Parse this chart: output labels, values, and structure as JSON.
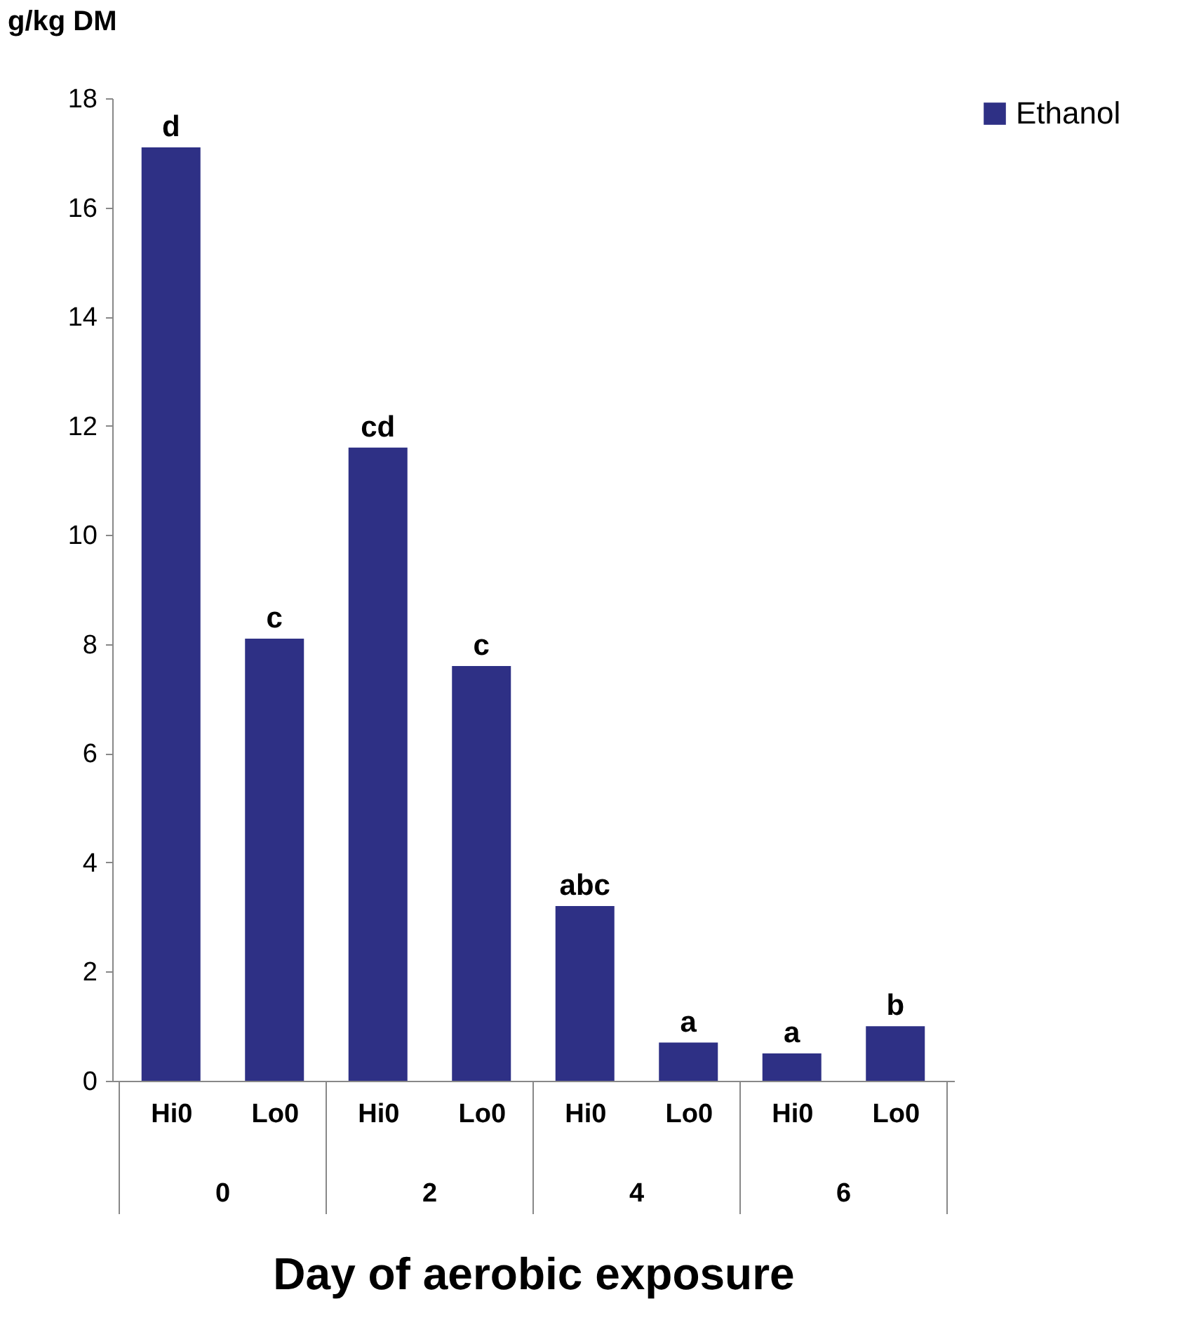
{
  "chart_data": {
    "type": "bar",
    "xlabel": "Day of aerobic exposure",
    "ylabel": "g/kg DM",
    "categories": [
      "Hi0",
      "Lo0",
      "Hi0",
      "Lo0",
      "Hi0",
      "Lo0",
      "Hi0",
      "Lo0"
    ],
    "series": [
      {
        "name": "Ethanol",
        "color": "#2e3085",
        "values": [
          17.1,
          8.1,
          11.6,
          7.6,
          3.2,
          0.7,
          0.5,
          1.0
        ],
        "value_labels": [
          "d",
          "c",
          "cd",
          "c",
          "abc",
          "a",
          "a",
          "b"
        ]
      }
    ],
    "annotations": [
      "0",
      "2",
      "4",
      "6"
    ],
    "ylim": [
      0,
      18
    ],
    "yticks": [
      0,
      2,
      4,
      6,
      8,
      10,
      12,
      14,
      16,
      18
    ],
    "legend": "right",
    "grid": false
  }
}
